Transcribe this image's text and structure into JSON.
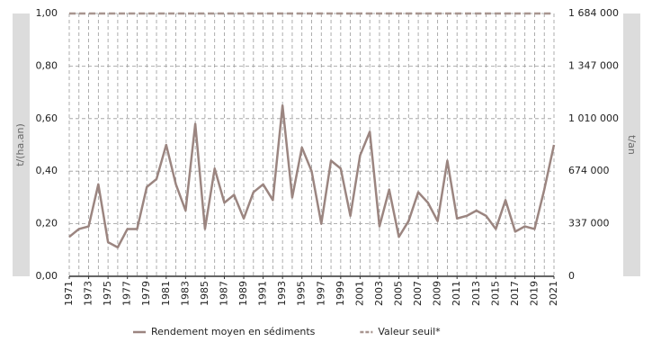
{
  "chart_data": {
    "type": "line",
    "y_label": "t/(ha.an)",
    "y2_label": "t/an",
    "x": [
      1971,
      1972,
      1973,
      1974,
      1975,
      1976,
      1977,
      1978,
      1979,
      1980,
      1981,
      1982,
      1983,
      1984,
      1985,
      1986,
      1987,
      1988,
      1989,
      1990,
      1991,
      1992,
      1993,
      1994,
      1995,
      1996,
      1997,
      1998,
      1999,
      2000,
      2001,
      2002,
      2003,
      2004,
      2005,
      2006,
      2007,
      2008,
      2009,
      2010,
      2011,
      2012,
      2013,
      2014,
      2015,
      2016,
      2017,
      2018,
      2019,
      2020,
      2021
    ],
    "xlim": [
      1971,
      2021
    ],
    "xticks": [
      1971,
      1973,
      1975,
      1977,
      1979,
      1981,
      1983,
      1985,
      1987,
      1989,
      1991,
      1993,
      1995,
      1997,
      1999,
      2001,
      2003,
      2005,
      2007,
      2009,
      2011,
      2013,
      2015,
      2017,
      2019,
      2021
    ],
    "ylim": [
      0,
      1
    ],
    "yticks": [
      {
        "value": 0,
        "label": "0,00"
      },
      {
        "value": 0.2,
        "label": "0,20"
      },
      {
        "value": 0.4,
        "label": "0,40"
      },
      {
        "value": 0.6,
        "label": "0,60"
      },
      {
        "value": 0.8,
        "label": "0,80"
      },
      {
        "value": 1,
        "label": "1,00"
      }
    ],
    "y2lim": [
      0,
      1684000
    ],
    "y2ticks": [
      0,
      {
        "value": 337000,
        "label": "337 000"
      },
      {
        "value": 674000,
        "label": "674 000"
      },
      {
        "value": 1010000,
        "label": "1 010 000"
      },
      {
        "value": 1347000,
        "label": "1 347 000"
      },
      {
        "value": 1684000,
        "label": "1 684 000"
      }
    ],
    "grid": true,
    "legend": "bottom",
    "series": [
      {
        "name": "Rendement moyen en sédiments",
        "color": "#9b8580",
        "dash": false,
        "values": [
          0.15,
          0.18,
          0.19,
          0.35,
          0.13,
          0.11,
          0.18,
          0.18,
          0.34,
          0.37,
          0.5,
          0.35,
          0.25,
          0.58,
          0.18,
          0.41,
          0.28,
          0.31,
          0.22,
          0.32,
          0.35,
          0.29,
          0.65,
          0.3,
          0.49,
          0.4,
          0.2,
          0.44,
          0.41,
          0.23,
          0.46,
          0.55,
          0.19,
          0.33,
          0.15,
          0.21,
          0.32,
          0.28,
          0.21,
          0.44,
          0.22,
          0.23,
          0.25,
          0.23,
          0.18,
          0.29,
          0.17,
          0.19,
          0.18,
          0.33,
          0.5
        ]
      },
      {
        "name": "Valeur seuil*",
        "color": "#a8958f",
        "dash": true,
        "values": [
          1,
          1,
          1,
          1,
          1,
          1,
          1,
          1,
          1,
          1,
          1,
          1,
          1,
          1,
          1,
          1,
          1,
          1,
          1,
          1,
          1,
          1,
          1,
          1,
          1,
          1,
          1,
          1,
          1,
          1,
          1,
          1,
          1,
          1,
          1,
          1,
          1,
          1,
          1,
          1,
          1,
          1,
          1,
          1,
          1,
          1,
          1,
          1,
          1,
          1,
          1
        ]
      }
    ]
  }
}
